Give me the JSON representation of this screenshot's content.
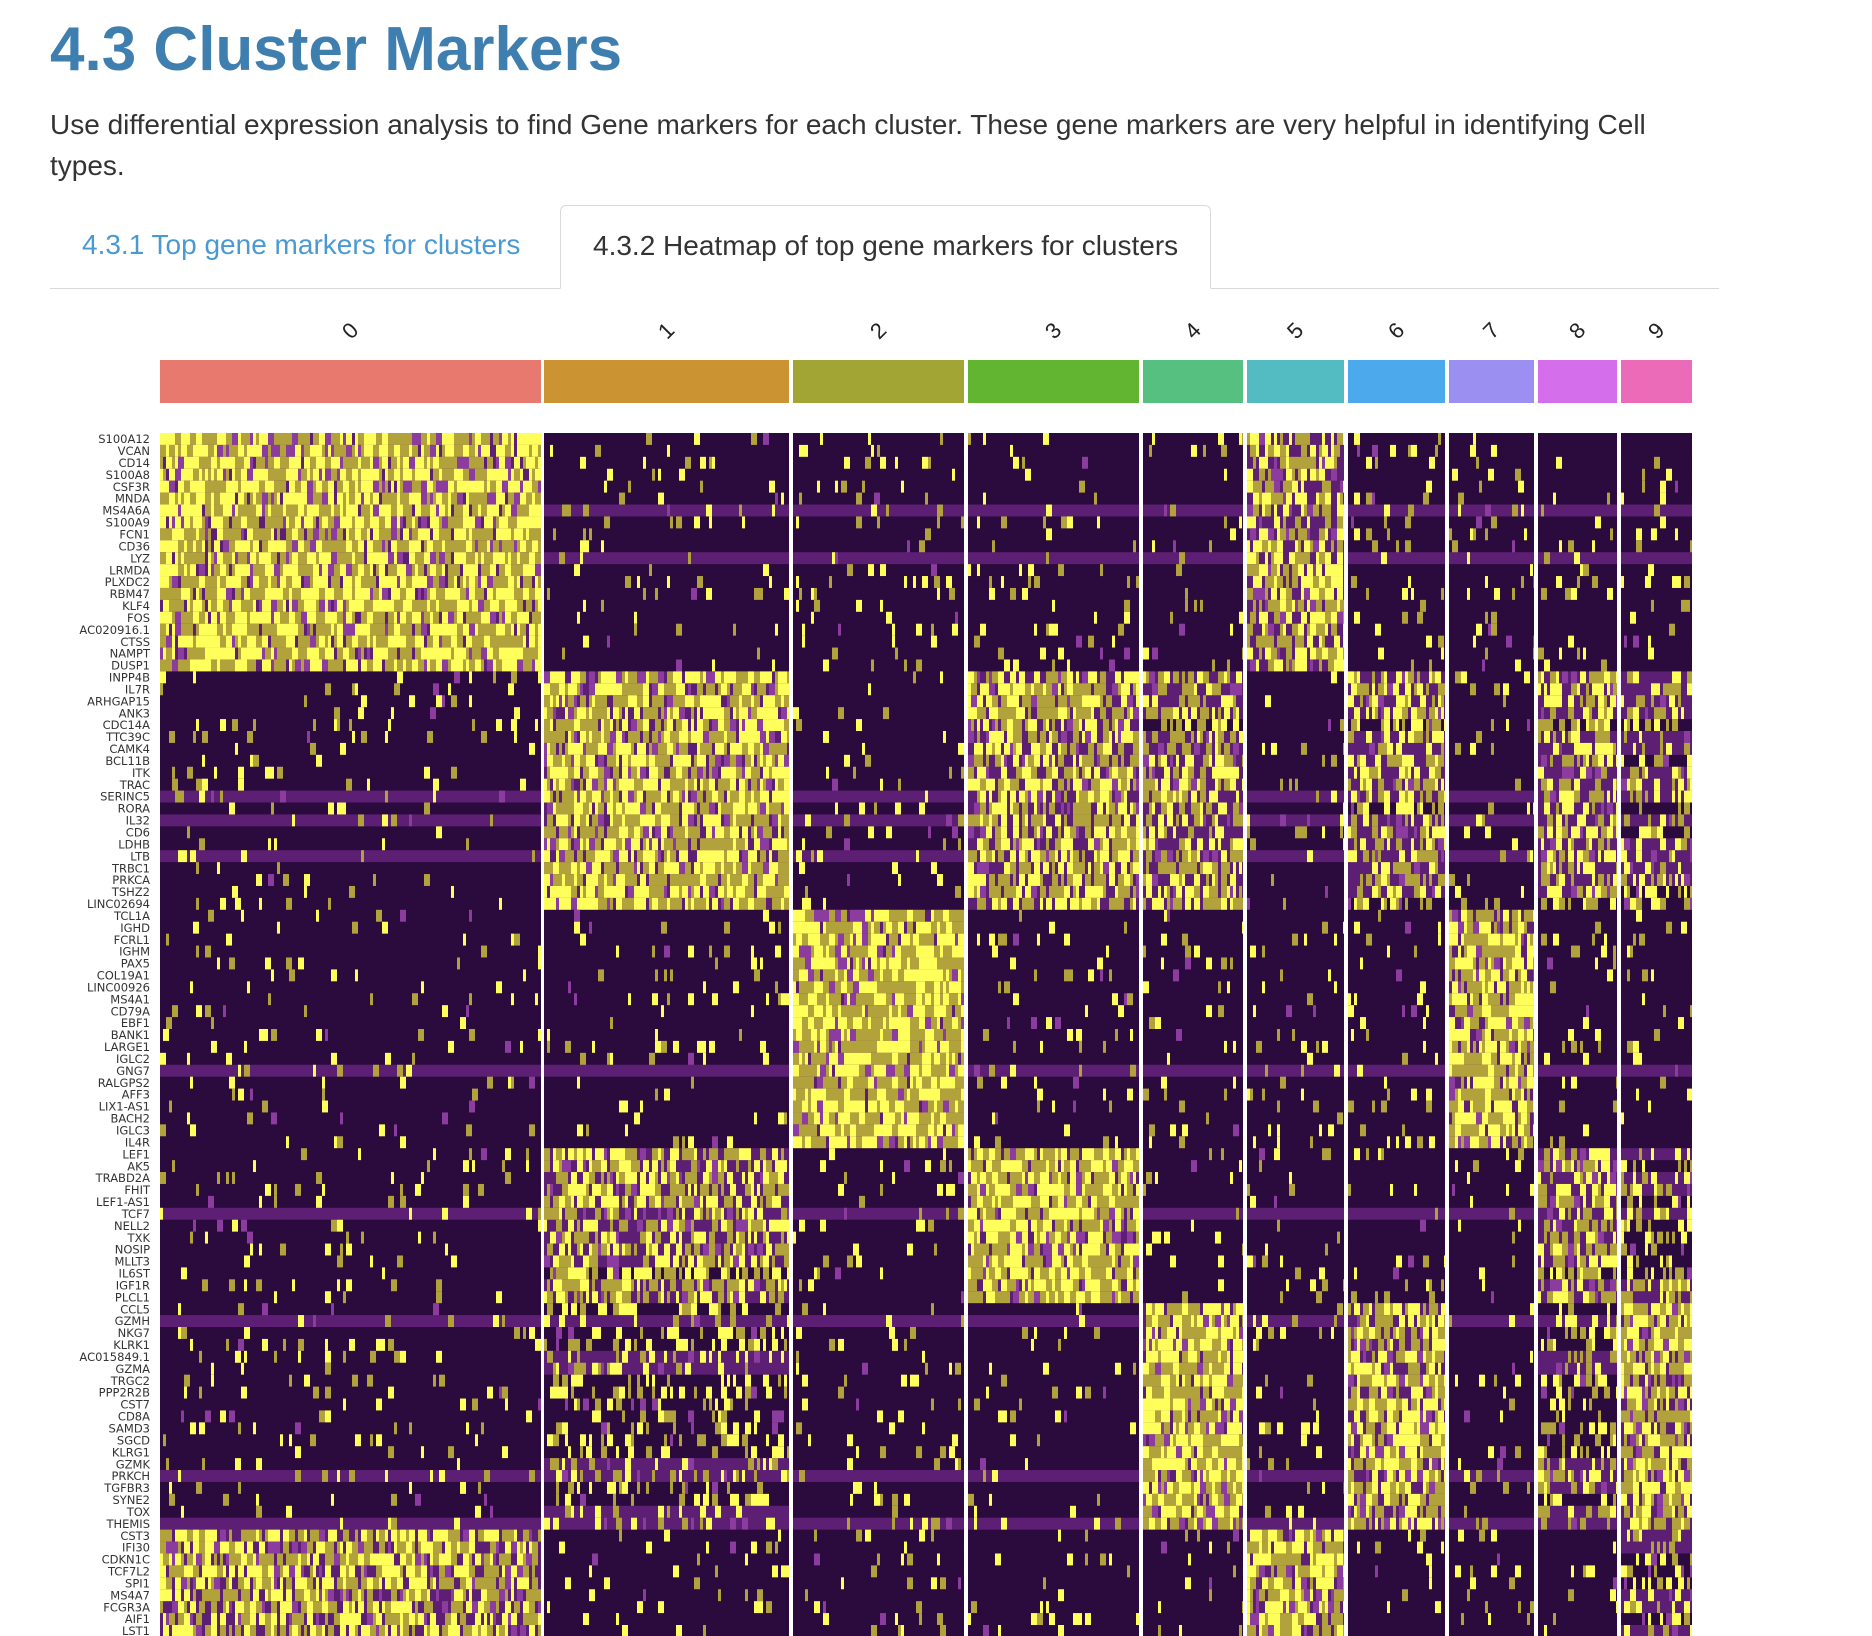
{
  "page": {
    "title": "4.3 Cluster Markers",
    "description": "Use differential expression analysis to find Gene markers for each cluster. These gene markers are very helpful in identifying Cell types."
  },
  "tabs": [
    {
      "label": "4.3.1 Top gene markers for clusters",
      "active": false
    },
    {
      "label": "4.3.2 Heatmap of top gene markers for clusters",
      "active": true
    }
  ],
  "chart_data": {
    "type": "heatmap",
    "title": "",
    "clusters": [
      "0",
      "1",
      "2",
      "3",
      "4",
      "5",
      "6",
      "7",
      "8",
      "9"
    ],
    "cluster_colors": [
      "#E8796F",
      "#CC9332",
      "#A2A534",
      "#62B531",
      "#55C080",
      "#53BCC3",
      "#4CA9EC",
      "#9B8FF2",
      "#D56EEB",
      "#EC6BB8"
    ],
    "colorscale": [
      "#2B0A3D",
      "#5D1F74",
      "#8B3C9E",
      "#B2A23B",
      "#FFFF5B"
    ],
    "genes": [
      "S100A12",
      "VCAN",
      "CD14",
      "S100A8",
      "CSF3R",
      "MNDA",
      "MS4A6A",
      "S100A9",
      "FCN1",
      "CD36",
      "LYZ",
      "LRMDA",
      "PLXDC2",
      "RBM47",
      "KLF4",
      "FOS",
      "AC020916.1",
      "CTSS",
      "NAMPT",
      "DUSP1",
      "INPP4B",
      "IL7R",
      "ARHGAP15",
      "ANK3",
      "CDC14A",
      "TTC39C",
      "CAMK4",
      "BCL11B",
      "ITK",
      "TRAC",
      "SERINC5",
      "RORA",
      "IL32",
      "CD6",
      "LDHB",
      "LTB",
      "TRBC1",
      "PRKCA",
      "TSHZ2",
      "LINC02694",
      "TCL1A",
      "IGHD",
      "FCRL1",
      "IGHM",
      "PAX5",
      "COL19A1",
      "LINC00926",
      "MS4A1",
      "CD79A",
      "EBF1",
      "BANK1",
      "LARGE1",
      "IGLC2",
      "GNG7",
      "RALGPS2",
      "AFF3",
      "LIX1-AS1",
      "BACH2",
      "IGLC3",
      "IL4R",
      "LEF1",
      "AK5",
      "TRABD2A",
      "FHIT",
      "LEF1-AS1",
      "TCF7",
      "NELL2",
      "TXK",
      "NOSIP",
      "MLLT3",
      "IL6ST",
      "IGF1R",
      "PLCL1",
      "CCL5",
      "GZMH",
      "NKG7",
      "KLRK1",
      "AC015849.1",
      "GZMA",
      "TRGC2",
      "PPP2R2B",
      "CST7",
      "CD8A",
      "SAMD3",
      "SGCD",
      "KLRG1",
      "GZMK",
      "PRKCH",
      "TGFBR3",
      "SYNE2",
      "TOX",
      "THEMIS",
      "CST3",
      "IFI30",
      "CDKN1C",
      "TCF7L2",
      "SPI1",
      "MS4A7",
      "FCGR3A",
      "AIF1",
      "LST1"
    ],
    "gene_blocks": [
      {
        "cluster": "0",
        "genes": [
          "S100A12",
          "VCAN",
          "CD14",
          "S100A8",
          "CSF3R",
          "MNDA",
          "MS4A6A",
          "S100A9",
          "FCN1",
          "CD36",
          "LYZ",
          "LRMDA",
          "PLXDC2",
          "RBM47",
          "KLF4",
          "FOS",
          "AC020916.1",
          "CTSS",
          "NAMPT",
          "DUSP1"
        ]
      },
      {
        "cluster": "1",
        "genes": [
          "INPP4B",
          "IL7R",
          "ARHGAP15",
          "ANK3",
          "CDC14A",
          "TTC39C",
          "CAMK4",
          "BCL11B",
          "ITK",
          "TRAC",
          "SERINC5",
          "RORA",
          "IL32",
          "CD6",
          "LDHB",
          "LTB",
          "TRBC1",
          "PRKCA",
          "TSHZ2",
          "LINC02694"
        ]
      },
      {
        "cluster": "2",
        "genes": [
          "TCL1A",
          "IGHD",
          "FCRL1",
          "IGHM",
          "PAX5",
          "COL19A1",
          "LINC00926",
          "MS4A1",
          "CD79A",
          "EBF1",
          "BANK1",
          "LARGE1",
          "IGLC2",
          "GNG7",
          "RALGPS2",
          "AFF3",
          "LIX1-AS1",
          "BACH2",
          "IGLC3",
          "IL4R"
        ]
      },
      {
        "cluster": "3",
        "genes": [
          "LEF1",
          "AK5",
          "TRABD2A",
          "FHIT",
          "LEF1-AS1",
          "TCF7",
          "NELL2",
          "TXK",
          "NOSIP",
          "MLLT3",
          "IL6ST",
          "IGF1R",
          "PLCL1"
        ]
      },
      {
        "cluster": "4",
        "genes": [
          "CCL5",
          "GZMH",
          "NKG7",
          "KLRK1",
          "AC015849.1",
          "GZMA",
          "TRGC2",
          "PPP2R2B",
          "CST7",
          "CD8A",
          "SAMD3",
          "SGCD",
          "KLRG1",
          "GZMK",
          "PRKCH",
          "TGFBR3",
          "SYNE2",
          "TOX",
          "THEMIS"
        ]
      },
      {
        "cluster": "5",
        "genes": [
          "CST3",
          "IFI30",
          "CDKN1C",
          "TCF7L2",
          "SPI1",
          "MS4A7",
          "FCGR3A",
          "AIF1",
          "LST1"
        ]
      }
    ]
  }
}
